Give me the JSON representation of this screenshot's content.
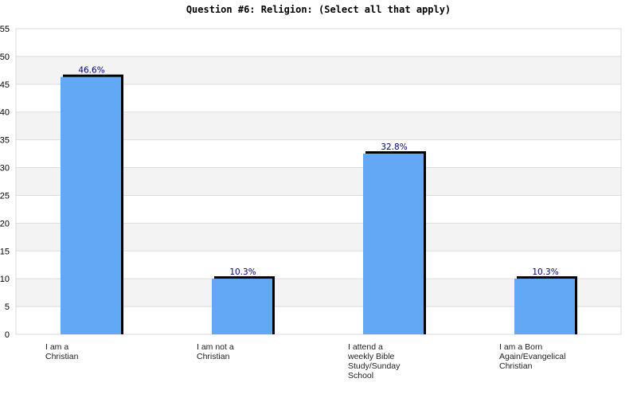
{
  "chart_data": {
    "type": "bar",
    "title": "Question #6: Religion: (Select all that apply)",
    "categories": [
      "I am a\nChristian",
      "I am not a\nChristian",
      "I attend a\nweekly Bible\nStudy/Sunday\nSchool",
      "I am a Born\nAgain/Evangelical\nChristian"
    ],
    "values": [
      46.6,
      10.3,
      32.8,
      10.3
    ],
    "value_labels": [
      "46.6%",
      "10.3%",
      "32.8%",
      "10.3%"
    ],
    "ylim": [
      0,
      55
    ],
    "yticks": [
      0,
      5,
      10,
      15,
      20,
      25,
      30,
      35,
      40,
      45,
      50,
      55
    ],
    "xlabel": "",
    "ylabel": "",
    "grid": true,
    "colors": {
      "bar": "#62a8f5",
      "bar_shadow": "#000000",
      "band": "#f3f3f3",
      "gridline": "#dddddd",
      "value_label": "#000080"
    }
  }
}
